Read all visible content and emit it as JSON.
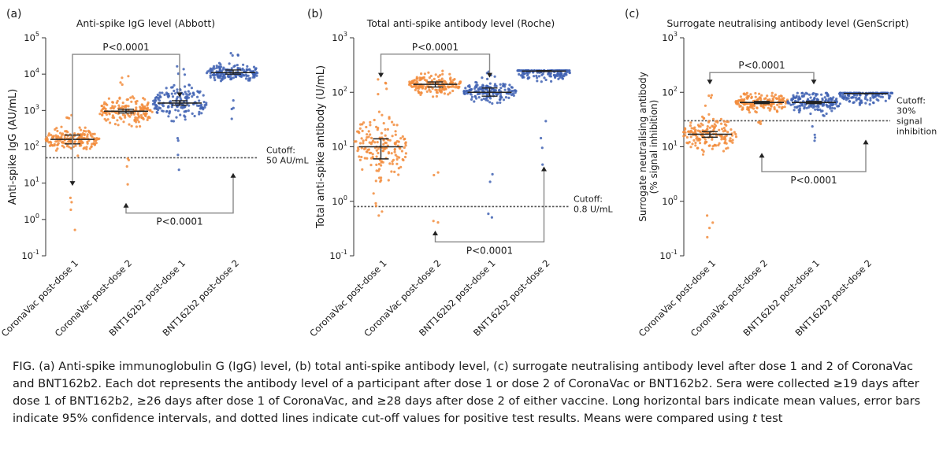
{
  "chart_data": [
    {
      "panel_letter": "(a)",
      "title": "Anti-spike IgG level (Abbott)",
      "type": "scatter",
      "ylabel": "Anti-spike IgG (AU/mL)",
      "yscale": "log",
      "ylim": [
        0.1,
        100000
      ],
      "ytick_base": "10",
      "ytick_exponents": [
        "-1",
        "0",
        "1",
        "2",
        "3",
        "4",
        "5"
      ],
      "categories": [
        "CoronaVac post-dose 1",
        "CoronaVac post-dose 2",
        "BNT162b2 post-dose 1",
        "BNT162b2 post-dose 2"
      ],
      "series": [
        {
          "color": "#f28c3c",
          "mean": 160,
          "ci": [
            120,
            210
          ],
          "min": 0.3,
          "max": 900
        },
        {
          "color": "#f28c3c",
          "mean": 950,
          "ci": [
            850,
            1080
          ],
          "min": 4,
          "max": 9000
        },
        {
          "color": "#3f62b3",
          "mean": 1600,
          "ci": [
            1400,
            1850
          ],
          "min": 20,
          "max": 20000
        },
        {
          "color": "#3f62b3",
          "mean": 11000,
          "ci": [
            10000,
            13000
          ],
          "min": 350,
          "max": 40000
        }
      ],
      "cutoff": {
        "value": 50,
        "label_line1": "Cutoff:",
        "label_line2": "50 AU/mL"
      },
      "comparisons": [
        {
          "from": 0,
          "to": 2,
          "level": 35000,
          "label": "P<0.0001",
          "anchor_from": 8,
          "anchor_to": 2200,
          "position": "above"
        },
        {
          "from": 1,
          "to": 3,
          "level": 1.5,
          "label": "P<0.0001",
          "anchor_from": 3,
          "anchor_to": 20,
          "position": "below"
        }
      ]
    },
    {
      "panel_letter": "(b)",
      "title": "Total anti-spike antibody level (Roche)",
      "type": "scatter",
      "ylabel": "Total anti-spike antibody (U/mL)",
      "yscale": "log",
      "ylim": [
        0.1,
        1000
      ],
      "ytick_base": "10",
      "ytick_exponents": [
        "-1",
        "0",
        "1",
        "2",
        "3"
      ],
      "categories": [
        "CoronaVac post-dose 1",
        "CoronaVac post-dose 2",
        "BNT162b2 post-dose 1",
        "BNT162b2 post-dose 2"
      ],
      "series": [
        {
          "color": "#f28c3c",
          "mean": 10,
          "ci": [
            6,
            14
          ],
          "min": 0.4,
          "max": 250
        },
        {
          "color": "#f28c3c",
          "mean": 140,
          "ci": [
            125,
            155
          ],
          "min": 0.4,
          "max": 250
        },
        {
          "color": "#3f62b3",
          "mean": 100,
          "ci": [
            85,
            120
          ],
          "min": 0.5,
          "max": 250
        },
        {
          "color": "#3f62b3",
          "mean": 245,
          "ci": [
            240,
            250
          ],
          "min": 4.5,
          "max": 250
        }
      ],
      "cutoff": {
        "value": 0.8,
        "label_line1": "Cutoff:",
        "label_line2": "0.8 U/mL"
      },
      "comparisons": [
        {
          "from": 0,
          "to": 2,
          "level": 500,
          "label": "P<0.0001",
          "anchor_from": 180,
          "anchor_to": 180,
          "position": "above"
        },
        {
          "from": 1,
          "to": 3,
          "level": 0.18,
          "label": "P<0.0001",
          "anchor_from": 0.3,
          "anchor_to": 4.5,
          "position": "below"
        }
      ]
    },
    {
      "panel_letter": "(c)",
      "title": "Surrogate neutralising antibody level (GenScript)",
      "type": "scatter",
      "ylabel": "Surrogate neutralising antibody",
      "ylabel2": "(% signal inhibition)",
      "yscale": "log",
      "ylim": [
        0.1,
        1000
      ],
      "ytick_base": "10",
      "ytick_exponents": [
        "-1",
        "0",
        "1",
        "2",
        "3"
      ],
      "categories": [
        "CoronaVac post-dose 1",
        "CoronaVac post-dose 2",
        "BNT162b2 post-dose 1",
        "BNT162b2 post-dose 2"
      ],
      "series": [
        {
          "color": "#f28c3c",
          "mean": 17,
          "ci": [
            15,
            19
          ],
          "min": 0.2,
          "max": 90
        },
        {
          "color": "#f28c3c",
          "mean": 65,
          "ci": [
            62,
            68
          ],
          "min": 25,
          "max": 97
        },
        {
          "color": "#3f62b3",
          "mean": 65,
          "ci": [
            62,
            68
          ],
          "min": 10,
          "max": 97
        },
        {
          "color": "#3f62b3",
          "mean": 95,
          "ci": [
            94,
            96
          ],
          "min": 55,
          "max": 97
        }
      ],
      "cutoff": {
        "value": 30,
        "label_line1": "Cutoff:",
        "label_line2": "30%",
        "label_line3": "signal",
        "label_line4": "inhibition"
      },
      "comparisons": [
        {
          "from": 0,
          "to": 2,
          "level": 230,
          "label": "P<0.0001",
          "anchor_from": 135,
          "anchor_to": 135,
          "position": "above"
        },
        {
          "from": 1,
          "to": 3,
          "level": 3.5,
          "label": "P<0.0001",
          "anchor_from": 8,
          "anchor_to": 14,
          "position": "below"
        }
      ]
    }
  ],
  "caption": {
    "prefix": "FIG. (a) Anti-spike immunoglobulin G (IgG) level, (b) total anti-spike antibody level, (c) surrogate neutralising antibody level after dose 1 and 2 of CoronaVac and BNT162b2. Each dot represents the antibody level of a participant after dose 1 or dose 2 of CoronaVac or BNT162b2. Sera were collected ≥19 days after dose 1 of BNT162b2, ≥26 days after dose 1 of CoronaVac, and ≥28 days after dose 2 of either vaccine. Long horizontal bars indicate mean values, error bars indicate 95% confidence intervals, and dotted lines indicate cut-off values for positive test results. Means were compared using ",
    "italic": "t",
    "suffix": " test"
  }
}
